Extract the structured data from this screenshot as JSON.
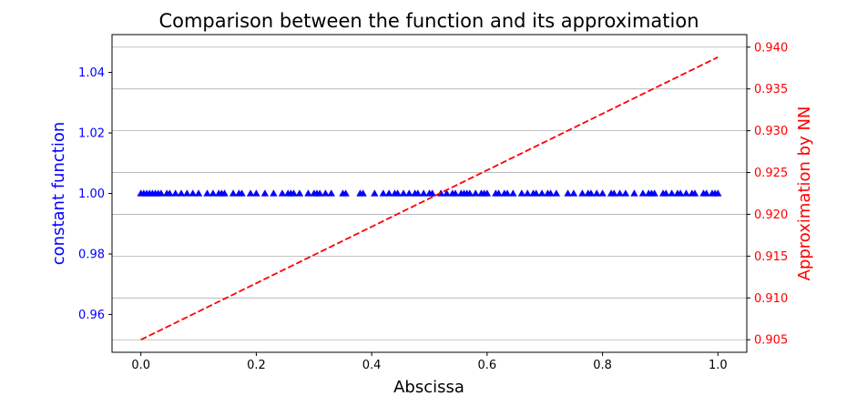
{
  "chart_data": {
    "type": "scatter+line",
    "title": "Comparison between the function and its approximation",
    "xlabel": "Abscissa",
    "ylabel_left": "constant function",
    "ylabel_right": "Approximation by NN",
    "xlim": [
      -0.05,
      1.05
    ],
    "ylim_left": [
      0.9475,
      1.0525
    ],
    "ylim_right": [
      0.9035,
      0.9415
    ],
    "x_ticks": [
      "0.0",
      "0.2",
      "0.4",
      "0.6",
      "0.8",
      "1.0"
    ],
    "y_left_ticks": [
      "0.96",
      "0.98",
      "1.00",
      "1.02",
      "1.04"
    ],
    "y_right_ticks": [
      "0.905",
      "0.910",
      "0.915",
      "0.920",
      "0.925",
      "0.930",
      "0.935",
      "0.940"
    ],
    "grid": "horizontal (right axis)",
    "colors": {
      "left": "#0000ff",
      "right": "#ff0000"
    },
    "series": [
      {
        "axis": "left",
        "marker": "triangle",
        "color": "#0000ff",
        "x": [
          0.0,
          0.005,
          0.01,
          0.015,
          0.02,
          0.025,
          0.03,
          0.035,
          0.045,
          0.05,
          0.06,
          0.07,
          0.08,
          0.09,
          0.1,
          0.115,
          0.125,
          0.135,
          0.14,
          0.145,
          0.16,
          0.17,
          0.175,
          0.19,
          0.2,
          0.215,
          0.23,
          0.245,
          0.255,
          0.26,
          0.265,
          0.275,
          0.29,
          0.3,
          0.305,
          0.31,
          0.32,
          0.33,
          0.35,
          0.355,
          0.38,
          0.385,
          0.405,
          0.42,
          0.43,
          0.44,
          0.445,
          0.455,
          0.465,
          0.475,
          0.48,
          0.49,
          0.5,
          0.505,
          0.52,
          0.53,
          0.54,
          0.545,
          0.555,
          0.56,
          0.565,
          0.57,
          0.58,
          0.59,
          0.595,
          0.6,
          0.615,
          0.62,
          0.63,
          0.635,
          0.645,
          0.66,
          0.67,
          0.68,
          0.685,
          0.695,
          0.705,
          0.71,
          0.72,
          0.74,
          0.75,
          0.765,
          0.775,
          0.78,
          0.79,
          0.8,
          0.815,
          0.82,
          0.83,
          0.84,
          0.855,
          0.87,
          0.88,
          0.885,
          0.89,
          0.905,
          0.91,
          0.92,
          0.93,
          0.935,
          0.945,
          0.955,
          0.96,
          0.975,
          0.98,
          0.99,
          0.995,
          1.0
        ],
        "y": 1.0
      },
      {
        "axis": "right",
        "style": "dashed",
        "color": "#ff0000",
        "x": [
          0.0,
          1.0
        ],
        "y": [
          0.905,
          0.9388
        ]
      }
    ]
  }
}
